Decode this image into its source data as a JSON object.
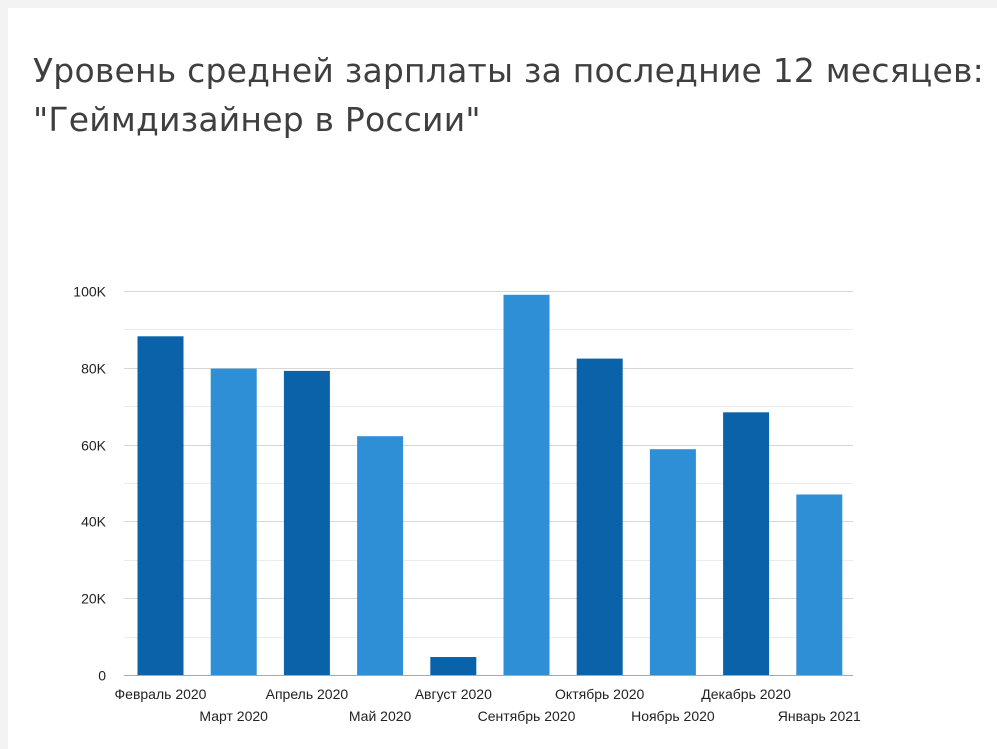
{
  "chart_data": {
    "type": "bar",
    "title_line1": "Уровень средней зарплаты за последние 12 месяцев:",
    "title_line2": "\"Геймдизайнер в России\"",
    "xlabel": "",
    "ylabel": "",
    "ylim": [
      0,
      100000
    ],
    "y_ticks": [
      {
        "value": 0,
        "label": "0"
      },
      {
        "value": 20000,
        "label": "20K"
      },
      {
        "value": 40000,
        "label": "40K"
      },
      {
        "value": 60000,
        "label": "60K"
      },
      {
        "value": 80000,
        "label": "80K"
      },
      {
        "value": 100000,
        "label": "100K"
      }
    ],
    "minor_gridlines": [
      10000,
      30000,
      50000,
      70000,
      90000
    ],
    "grid": true,
    "legend": false,
    "categories": [
      "Февраль 2020",
      "Март 2020",
      "Апрель 2020",
      "Май 2020",
      "Август 2020",
      "Сентябрь 2020",
      "Октябрь 2020",
      "Ноябрь 2020",
      "Декабрь 2020",
      "Январь 2021"
    ],
    "values": [
      88200,
      79800,
      79200,
      62200,
      4700,
      99000,
      82400,
      58800,
      68400,
      47000
    ],
    "colors": {
      "dark_bar": "#0a63a8",
      "light_bar": "#2e8fd6",
      "axis": "#a9a9a9",
      "major_grid": "#d6d6d6",
      "minor_grid": "#ececec"
    },
    "bar_color_pattern": [
      "dark_bar",
      "light_bar",
      "dark_bar",
      "light_bar",
      "dark_bar",
      "light_bar",
      "dark_bar",
      "light_bar",
      "dark_bar",
      "light_bar"
    ]
  }
}
